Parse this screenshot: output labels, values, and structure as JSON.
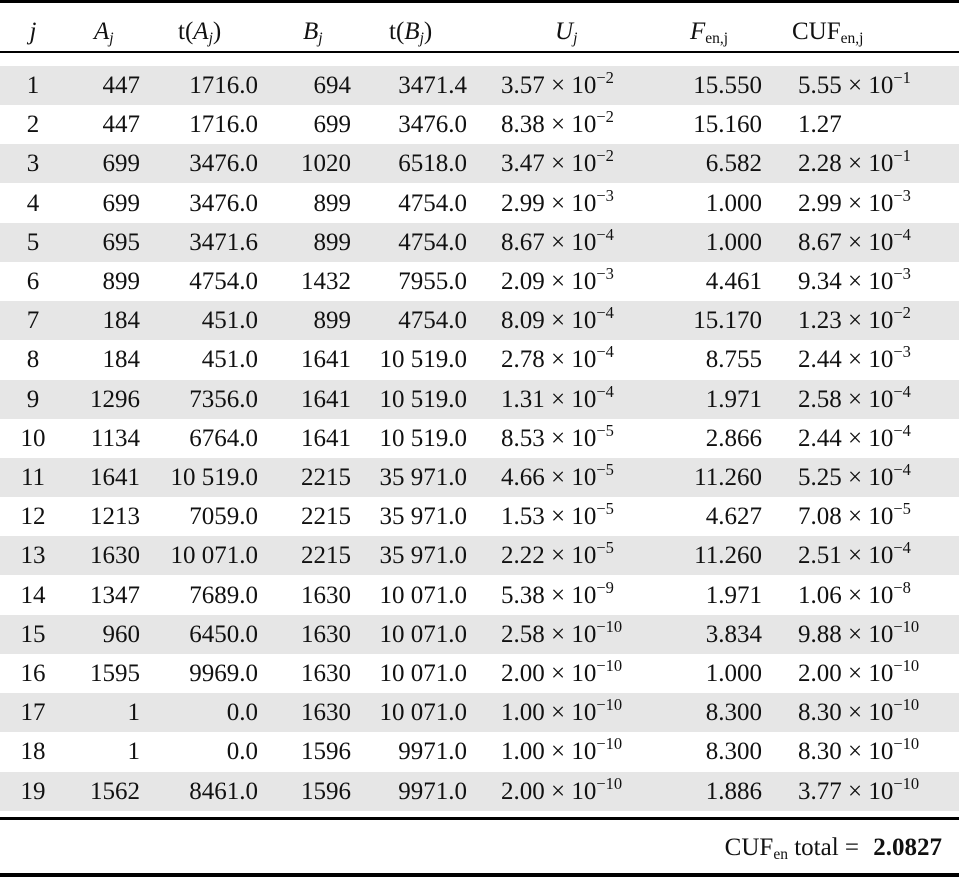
{
  "table": {
    "headers": [
      {
        "pre": "",
        "var": "j",
        "sub": "",
        "post": ""
      },
      {
        "pre": "",
        "var": "A",
        "sub": "j",
        "post": ""
      },
      {
        "pre": "t(",
        "var": "A",
        "sub": "j",
        "post": ")"
      },
      {
        "pre": "",
        "var": "B",
        "sub": "j",
        "post": ""
      },
      {
        "pre": "t(",
        "var": "B",
        "sub": "j",
        "post": ")"
      },
      {
        "pre": "",
        "var": "U",
        "sub": "j",
        "post": ""
      },
      {
        "pre": "",
        "var": "F",
        "sub": "en,j",
        "post": ""
      },
      {
        "pre": "CUF",
        "var": "",
        "sub": "en,j",
        "post": ""
      }
    ],
    "rows": [
      {
        "j": "1",
        "A": "447",
        "tA": "1716.0",
        "B": "694",
        "tB": "3471.4",
        "U": {
          "m": "3.57",
          "e": "−2"
        },
        "F": "15.550",
        "CUF": {
          "m": "5.55",
          "e": "−1"
        }
      },
      {
        "j": "2",
        "A": "447",
        "tA": "1716.0",
        "B": "699",
        "tB": "3476.0",
        "U": {
          "m": "8.38",
          "e": "−2"
        },
        "F": "15.160",
        "CUF": {
          "m": "1.27",
          "e": ""
        }
      },
      {
        "j": "3",
        "A": "699",
        "tA": "3476.0",
        "B": "1020",
        "tB": "6518.0",
        "U": {
          "m": "3.47",
          "e": "−2"
        },
        "F": "6.582",
        "CUF": {
          "m": "2.28",
          "e": "−1"
        }
      },
      {
        "j": "4",
        "A": "699",
        "tA": "3476.0",
        "B": "899",
        "tB": "4754.0",
        "U": {
          "m": "2.99",
          "e": "−3"
        },
        "F": "1.000",
        "CUF": {
          "m": "2.99",
          "e": "−3"
        }
      },
      {
        "j": "5",
        "A": "695",
        "tA": "3471.6",
        "B": "899",
        "tB": "4754.0",
        "U": {
          "m": "8.67",
          "e": "−4"
        },
        "F": "1.000",
        "CUF": {
          "m": "8.67",
          "e": "−4"
        }
      },
      {
        "j": "6",
        "A": "899",
        "tA": "4754.0",
        "B": "1432",
        "tB": "7955.0",
        "U": {
          "m": "2.09",
          "e": "−3"
        },
        "F": "4.461",
        "CUF": {
          "m": "9.34",
          "e": "−3"
        }
      },
      {
        "j": "7",
        "A": "184",
        "tA": "451.0",
        "B": "899",
        "tB": "4754.0",
        "U": {
          "m": "8.09",
          "e": "−4"
        },
        "F": "15.170",
        "CUF": {
          "m": "1.23",
          "e": "−2"
        }
      },
      {
        "j": "8",
        "A": "184",
        "tA": "451.0",
        "B": "1641",
        "tB": "10 519.0",
        "U": {
          "m": "2.78",
          "e": "−4"
        },
        "F": "8.755",
        "CUF": {
          "m": "2.44",
          "e": "−3"
        }
      },
      {
        "j": "9",
        "A": "1296",
        "tA": "7356.0",
        "B": "1641",
        "tB": "10 519.0",
        "U": {
          "m": "1.31",
          "e": "−4"
        },
        "F": "1.971",
        "CUF": {
          "m": "2.58",
          "e": "−4"
        }
      },
      {
        "j": "10",
        "A": "1134",
        "tA": "6764.0",
        "B": "1641",
        "tB": "10 519.0",
        "U": {
          "m": "8.53",
          "e": "−5"
        },
        "F": "2.866",
        "CUF": {
          "m": "2.44",
          "e": "−4"
        }
      },
      {
        "j": "11",
        "A": "1641",
        "tA": "10 519.0",
        "B": "2215",
        "tB": "35 971.0",
        "U": {
          "m": "4.66",
          "e": "−5"
        },
        "F": "11.260",
        "CUF": {
          "m": "5.25",
          "e": "−4"
        }
      },
      {
        "j": "12",
        "A": "1213",
        "tA": "7059.0",
        "B": "2215",
        "tB": "35 971.0",
        "U": {
          "m": "1.53",
          "e": "−5"
        },
        "F": "4.627",
        "CUF": {
          "m": "7.08",
          "e": "−5"
        }
      },
      {
        "j": "13",
        "A": "1630",
        "tA": "10 071.0",
        "B": "2215",
        "tB": "35 971.0",
        "U": {
          "m": "2.22",
          "e": "−5"
        },
        "F": "11.260",
        "CUF": {
          "m": "2.51",
          "e": "−4"
        }
      },
      {
        "j": "14",
        "A": "1347",
        "tA": "7689.0",
        "B": "1630",
        "tB": "10 071.0",
        "U": {
          "m": "5.38",
          "e": "−9"
        },
        "F": "1.971",
        "CUF": {
          "m": "1.06",
          "e": "−8"
        }
      },
      {
        "j": "15",
        "A": "960",
        "tA": "6450.0",
        "B": "1630",
        "tB": "10 071.0",
        "U": {
          "m": "2.58",
          "e": "−10"
        },
        "F": "3.834",
        "CUF": {
          "m": "9.88",
          "e": "−10"
        }
      },
      {
        "j": "16",
        "A": "1595",
        "tA": "9969.0",
        "B": "1630",
        "tB": "10 071.0",
        "U": {
          "m": "2.00",
          "e": "−10"
        },
        "F": "1.000",
        "CUF": {
          "m": "2.00",
          "e": "−10"
        }
      },
      {
        "j": "17",
        "A": "1",
        "tA": "0.0",
        "B": "1630",
        "tB": "10 071.0",
        "U": {
          "m": "1.00",
          "e": "−10"
        },
        "F": "8.300",
        "CUF": {
          "m": "8.30",
          "e": "−10"
        }
      },
      {
        "j": "18",
        "A": "1",
        "tA": "0.0",
        "B": "1596",
        "tB": "9971.0",
        "U": {
          "m": "1.00",
          "e": "−10"
        },
        "F": "8.300",
        "CUF": {
          "m": "8.30",
          "e": "−10"
        }
      },
      {
        "j": "19",
        "A": "1562",
        "tA": "8461.0",
        "B": "1596",
        "tB": "9971.0",
        "U": {
          "m": "2.00",
          "e": "−10"
        },
        "F": "1.886",
        "CUF": {
          "m": "3.77",
          "e": "−10"
        }
      }
    ],
    "total": {
      "label": "CUF",
      "label_sub": "en",
      "label_post": " total =",
      "value": "2.0827"
    },
    "shade_color": "#e6e6e6"
  }
}
